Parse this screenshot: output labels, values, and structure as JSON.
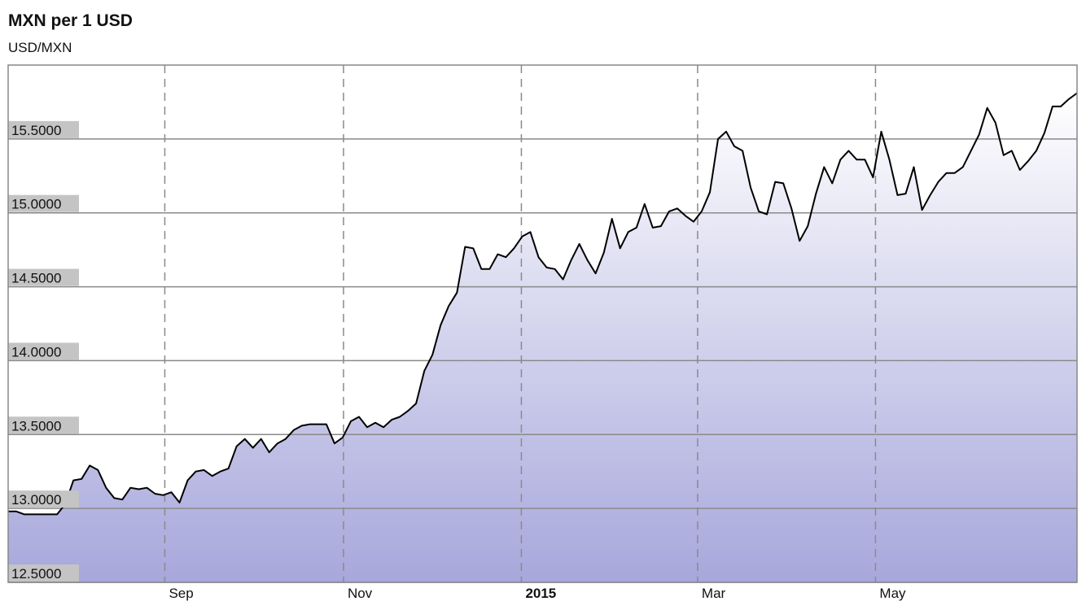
{
  "chart_data": {
    "type": "line",
    "title": "MXN per 1 USD",
    "subtitle": "USD/MXN",
    "values": [
      12.98,
      12.98,
      12.96,
      12.96,
      12.96,
      12.96,
      12.96,
      13.03,
      13.19,
      13.2,
      13.29,
      13.26,
      13.14,
      13.07,
      13.06,
      13.14,
      13.13,
      13.14,
      13.1,
      13.09,
      13.11,
      13.04,
      13.19,
      13.25,
      13.26,
      13.22,
      13.25,
      13.27,
      13.42,
      13.47,
      13.41,
      13.47,
      13.38,
      13.44,
      13.47,
      13.53,
      13.56,
      13.57,
      13.57,
      13.57,
      13.44,
      13.48,
      13.59,
      13.62,
      13.55,
      13.58,
      13.55,
      13.6,
      13.62,
      13.66,
      13.71,
      13.93,
      14.04,
      14.24,
      14.37,
      14.46,
      14.77,
      14.76,
      14.62,
      14.62,
      14.72,
      14.7,
      14.76,
      14.84,
      14.87,
      14.7,
      14.63,
      14.62,
      14.55,
      14.68,
      14.79,
      14.68,
      14.59,
      14.73,
      14.96,
      14.76,
      14.87,
      14.9,
      15.06,
      14.9,
      14.91,
      15.01,
      15.03,
      14.98,
      14.94,
      15.01,
      15.14,
      15.5,
      15.55,
      15.45,
      15.42,
      15.17,
      15.01,
      14.99,
      15.21,
      15.2,
      15.03,
      14.81,
      14.91,
      15.13,
      15.31,
      15.2,
      15.36,
      15.42,
      15.36,
      15.36,
      15.24,
      15.55,
      15.36,
      15.12,
      15.13,
      15.31,
      15.02,
      15.12,
      15.21,
      15.27,
      15.27,
      15.31,
      15.42,
      15.53,
      15.71,
      15.61,
      15.39,
      15.42,
      15.29,
      15.35,
      15.42,
      15.54,
      15.72,
      15.72,
      15.77,
      15.81
    ],
    "color": "#000000",
    "xlim": [
      0,
      131
    ],
    "xticks": [
      {
        "value": 19.2,
        "label": "Sep"
      },
      {
        "value": 41.1,
        "label": "Nov"
      },
      {
        "value": 62.9,
        "label": "2015"
      },
      {
        "value": 84.5,
        "label": "Mar"
      },
      {
        "value": 106.3,
        "label": "May"
      }
    ],
    "ylim": [
      12.5,
      16.0
    ],
    "yticks": [
      {
        "value": 12.5,
        "label": "12.5000"
      },
      {
        "value": 13.0,
        "label": "13.0000"
      },
      {
        "value": 13.5,
        "label": "13.5000"
      },
      {
        "value": 14.0,
        "label": "14.0000"
      },
      {
        "value": 14.5,
        "label": "14.5000"
      },
      {
        "value": 15.0,
        "label": "15.0000"
      },
      {
        "value": 15.5,
        "label": "15.5000"
      }
    ],
    "grid": true
  }
}
